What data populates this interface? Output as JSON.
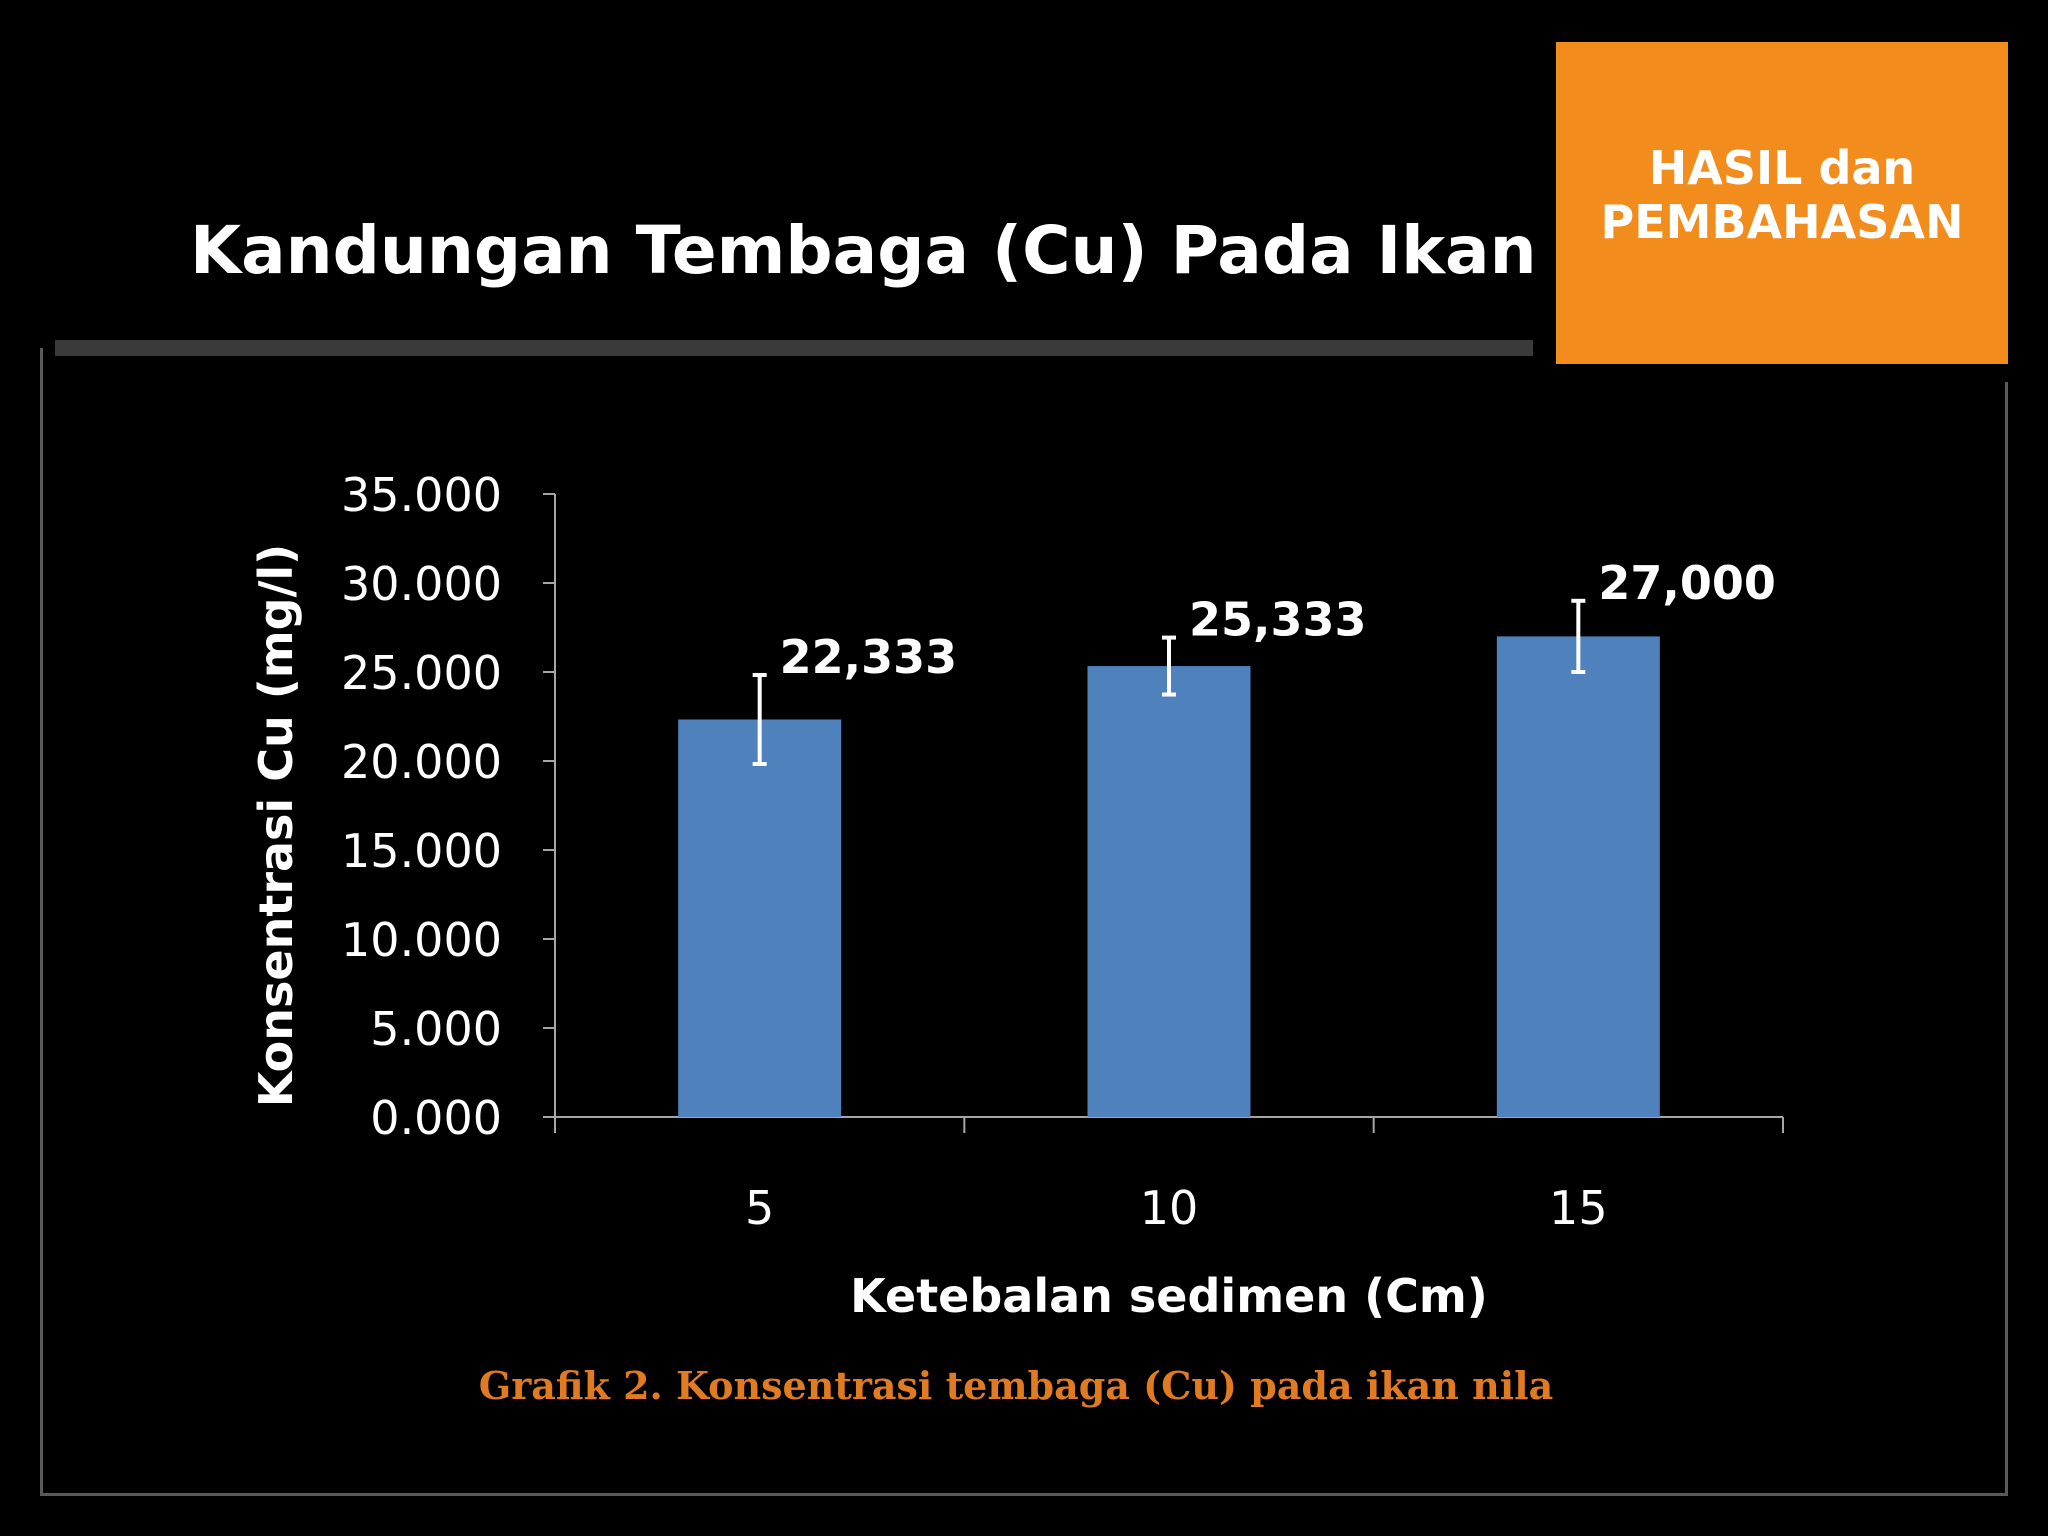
{
  "slide": {
    "title": "Kandungan Tembaga (Cu) Pada Ikan Nila",
    "section_badge": [
      "HASIL dan",
      "PEMBAHASAN"
    ],
    "caption": "Grafik 2. Konsentrasi tembaga (Cu) pada ikan nila"
  },
  "colors": {
    "background": "#000000",
    "badge": "#f28c1d",
    "bar": "#4f81bd",
    "caption": "#e07b22"
  },
  "chart_data": {
    "type": "bar",
    "categories": [
      "5",
      "10",
      "15"
    ],
    "values": [
      22.333,
      25.333,
      27.0
    ],
    "data_labels": [
      "22,333",
      "25,333",
      "27,000"
    ],
    "error_bars": [
      2.5,
      1.6,
      2.0
    ],
    "xlabel": "Ketebalan sedimen (Cm)",
    "ylabel": "Konsentrasi  Cu (mg/l)",
    "ylim": [
      0,
      35
    ],
    "yticks": [
      0,
      5,
      10,
      15,
      20,
      25,
      30,
      35
    ],
    "ytick_labels": [
      "0.000",
      "5.000",
      "10.000",
      "15.000",
      "20.000",
      "25.000",
      "30.000",
      "35.000"
    ],
    "grid": false,
    "legend": "none"
  }
}
